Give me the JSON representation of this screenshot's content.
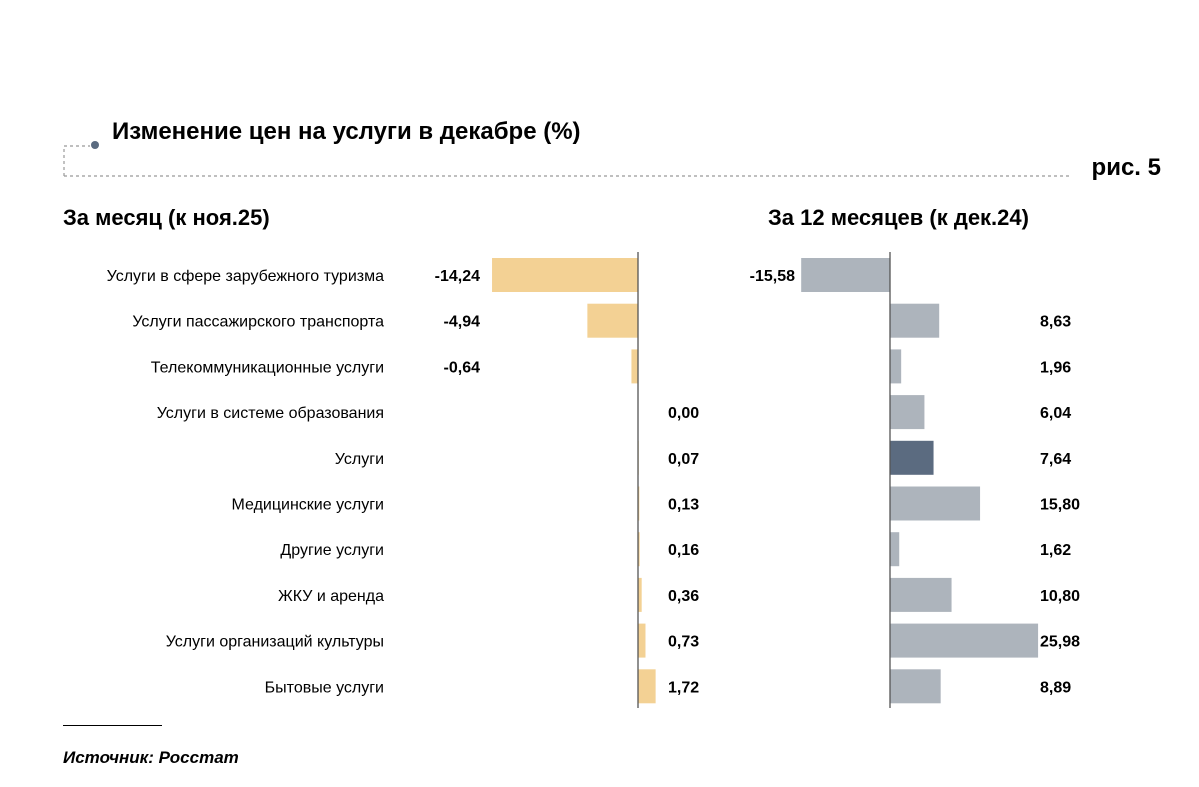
{
  "title": "Изменение цен на услуги в декабре (%)",
  "figure_label": "рис. 5",
  "source": "Источник: Росстат",
  "colors": {
    "left_bar": "#f3d194",
    "right_bar": "#adb4bc",
    "highlight_bar": "#5b6b80",
    "axis": "#555555",
    "marker": "#5b6b80"
  },
  "chart_data": [
    {
      "type": "bar",
      "orientation": "horizontal",
      "title": "За месяц (к ноя.25)",
      "categories": [
        "Услуги в сфере зарубежного туризма",
        "Услуги пассажирского транспорта",
        "Телекоммуникационные услуги",
        "Услуги в системе образования",
        "Услуги",
        "Медицинские услуги",
        "Другие услуги",
        "ЖКУ и аренда",
        "Услуги организаций культуры",
        "Бытовые услуги"
      ],
      "values": [
        -14.24,
        -4.94,
        -0.64,
        0.0,
        0.07,
        0.13,
        0.16,
        0.36,
        0.73,
        1.72
      ],
      "labels": [
        "-14,24",
        "-4,94",
        "-0,64",
        "0,00",
        "0,07",
        "0,13",
        "0,16",
        "0,36",
        "0,73",
        "1,72"
      ]
    },
    {
      "type": "bar",
      "orientation": "horizontal",
      "title": "За 12 месяцев (к дек.24)",
      "categories": [
        "Услуги в сфере зарубежного туризма",
        "Услуги пассажирского транспорта",
        "Телекоммуникационные услуги",
        "Услуги в системе образования",
        "Услуги",
        "Медицинские услуги",
        "Другие услуги",
        "ЖКУ и аренда",
        "Услуги организаций культуры",
        "Бытовые услуги"
      ],
      "values": [
        -15.58,
        8.63,
        1.96,
        6.04,
        7.64,
        15.8,
        1.62,
        10.8,
        25.98,
        8.89
      ],
      "labels": [
        "-15,58",
        "8,63",
        "1,96",
        "6,04",
        "7,64",
        "15,80",
        "1,62",
        "10,80",
        "25,98",
        "8,89"
      ],
      "highlight_index": 4
    }
  ]
}
